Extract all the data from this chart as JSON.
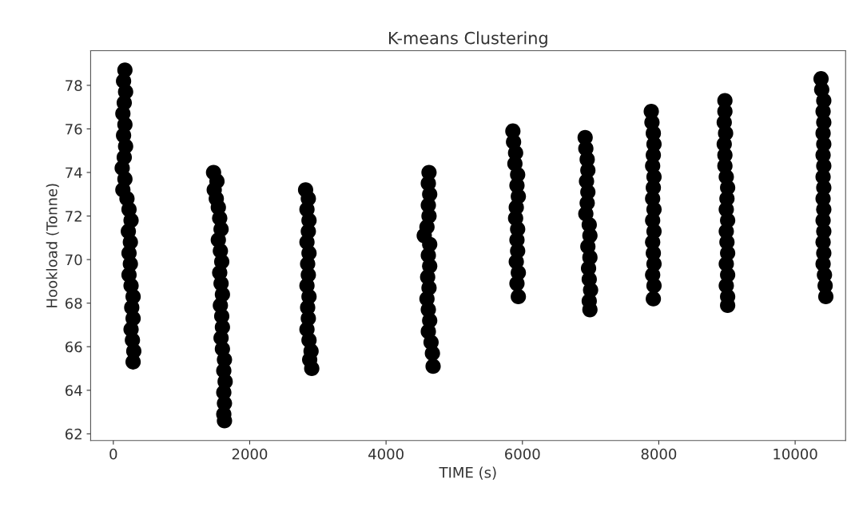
{
  "chart_data": {
    "type": "scatter",
    "title": "K-means Clustering",
    "xlabel": "TIME (s)",
    "ylabel": "Hookload (Tonne)",
    "xlim": [
      -333,
      10740
    ],
    "ylim": [
      61.69,
      79.59
    ],
    "xticks": [
      0,
      2000,
      4000,
      6000,
      8000,
      10000
    ],
    "yticks": [
      62,
      64,
      66,
      68,
      70,
      72,
      74,
      76,
      78
    ],
    "grid": false,
    "legend": false,
    "marker": "circle",
    "series": [
      {
        "color": "#000000",
        "x": [
          170,
          150,
          180,
          160,
          140,
          170,
          150,
          180,
          160,
          130,
          170,
          140,
          200,
          230,
          260,
          220,
          250,
          230,
          250,
          230,
          260,
          290,
          270,
          290,
          260,
          280,
          300,
          290,
          1470,
          1520,
          1480,
          1510,
          1540,
          1560,
          1580,
          1540,
          1570,
          1590,
          1560,
          1580,
          1600,
          1570,
          1590,
          1600,
          1580,
          1600,
          1630,
          1620,
          1640,
          1620,
          1630,
          1620,
          1630,
          2820,
          2860,
          2840,
          2870,
          2860,
          2840,
          2870,
          2850,
          2860,
          2840,
          2870,
          2850,
          2860,
          2840,
          2870,
          2900,
          2880,
          2910,
          4630,
          4620,
          4640,
          4620,
          4630,
          4600,
          4560,
          4640,
          4620,
          4640,
          4610,
          4630,
          4600,
          4620,
          4640,
          4620,
          4660,
          4680,
          4690,
          5860,
          5870,
          5900,
          5890,
          5930,
          5920,
          5940,
          5910,
          5900,
          5930,
          5920,
          5930,
          5910,
          5940,
          5920,
          5940,
          6920,
          6930,
          6950,
          6960,
          6940,
          6960,
          6950,
          6930,
          6980,
          6990,
          6960,
          6990,
          6970,
          6980,
          7000,
          6980,
          6990,
          7890,
          7900,
          7920,
          7930,
          7920,
          7910,
          7930,
          7920,
          7910,
          7930,
          7910,
          7930,
          7910,
          7920,
          7930,
          7910,
          7930,
          7920,
          8970,
          8970,
          8960,
          8980,
          8960,
          8970,
          8970,
          8990,
          9010,
          9000,
          8990,
          9010,
          8990,
          9000,
          9010,
          8990,
          9010,
          8990,
          9010,
          9010,
          10380,
          10390,
          10420,
          10410,
          10420,
          10410,
          10420,
          10410,
          10420,
          10410,
          10420,
          10410,
          10420,
          10410,
          10420,
          10410,
          10420,
          10410,
          10430,
          10440,
          10450
        ],
        "values": [
          78.7,
          78.2,
          77.7,
          77.2,
          76.7,
          76.2,
          75.7,
          75.2,
          74.7,
          74.2,
          73.7,
          73.2,
          72.8,
          72.3,
          71.8,
          71.3,
          70.8,
          70.3,
          69.8,
          69.3,
          68.8,
          68.3,
          67.8,
          67.3,
          66.8,
          66.3,
          65.8,
          65.3,
          74.0,
          73.6,
          73.2,
          72.8,
          72.4,
          71.9,
          71.4,
          70.9,
          70.4,
          69.9,
          69.4,
          68.9,
          68.4,
          67.9,
          67.4,
          66.9,
          66.4,
          65.9,
          65.4,
          64.9,
          64.4,
          63.9,
          63.4,
          62.9,
          62.6,
          73.2,
          72.8,
          72.3,
          71.8,
          71.3,
          70.8,
          70.3,
          69.8,
          69.3,
          68.8,
          68.3,
          67.8,
          67.3,
          66.8,
          66.3,
          65.8,
          65.4,
          65.0,
          74.0,
          73.5,
          73.0,
          72.5,
          72.0,
          71.5,
          71.1,
          70.7,
          70.2,
          69.7,
          69.2,
          68.7,
          68.2,
          67.7,
          67.2,
          66.7,
          66.2,
          65.7,
          65.1,
          75.9,
          75.4,
          74.9,
          74.4,
          73.9,
          73.4,
          72.9,
          72.4,
          71.9,
          71.4,
          70.9,
          70.4,
          69.9,
          69.4,
          68.9,
          68.3,
          75.6,
          75.1,
          74.6,
          74.1,
          73.6,
          73.1,
          72.6,
          72.1,
          71.6,
          71.1,
          70.6,
          70.1,
          69.6,
          69.1,
          68.6,
          68.1,
          67.7,
          76.8,
          76.3,
          75.8,
          75.3,
          74.8,
          74.3,
          73.8,
          73.3,
          72.8,
          72.3,
          71.8,
          71.3,
          70.8,
          70.3,
          69.8,
          69.3,
          68.8,
          68.2,
          77.3,
          76.8,
          76.3,
          75.8,
          75.3,
          74.8,
          74.3,
          73.8,
          73.3,
          72.8,
          72.3,
          71.8,
          71.3,
          70.8,
          70.3,
          69.8,
          69.3,
          68.8,
          68.3,
          67.9,
          78.3,
          77.8,
          77.3,
          76.8,
          76.3,
          75.8,
          75.3,
          74.8,
          74.3,
          73.8,
          73.3,
          72.8,
          72.3,
          71.8,
          71.3,
          70.8,
          70.3,
          69.8,
          69.3,
          68.8,
          68.3
        ]
      }
    ]
  }
}
